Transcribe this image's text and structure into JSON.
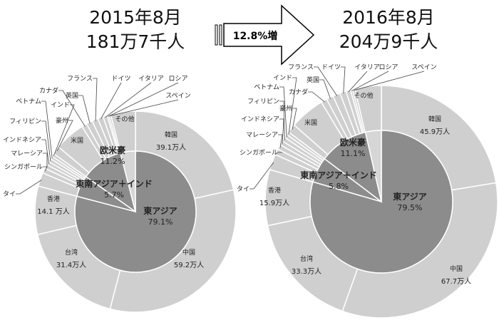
{
  "header": {
    "left_month": "2015年8月",
    "left_total": "181万7千人",
    "right_month": "2016年8月",
    "right_total": "204万9千人",
    "growth": "12.8%増"
  },
  "colors": {
    "outer": "#cfcfcf",
    "inner": "#8c8c8c",
    "inner_other": "#d6d6d6",
    "separator": "#ffffff"
  },
  "chart_data": [
    {
      "type": "pie",
      "title": "2015年8月 181万7千人",
      "unit": "万人",
      "outer": [
        {
          "name": "韓国",
          "value": 39.1,
          "label": "39.1万人"
        },
        {
          "name": "中国",
          "value": 59.2,
          "label": "59.2万人"
        },
        {
          "name": "台湾",
          "value": 31.4,
          "label": "31.4万人"
        },
        {
          "name": "香港",
          "value": 14.1,
          "label": "14.1 万人"
        },
        {
          "name": "タイ",
          "value": 4.0
        },
        {
          "name": "シンガポール",
          "value": 1.5
        },
        {
          "name": "マレーシア",
          "value": 1.2
        },
        {
          "name": "インドネシア",
          "value": 1.0
        },
        {
          "name": "フィリピン",
          "value": 1.0
        },
        {
          "name": "ベトナム",
          "value": 0.8
        },
        {
          "name": "インド",
          "value": 0.9
        },
        {
          "name": "豪州",
          "value": 2.4
        },
        {
          "name": "米国",
          "value": 9.0
        },
        {
          "name": "カナダ",
          "value": 1.5
        },
        {
          "name": "英国",
          "value": 1.8
        },
        {
          "name": "フランス",
          "value": 1.8
        },
        {
          "name": "ドイツ",
          "value": 1.6
        },
        {
          "name": "イタリア",
          "value": 1.2
        },
        {
          "name": "ロシア",
          "value": 0.5
        },
        {
          "name": "スペイン",
          "value": 0.6
        },
        {
          "name": "その他",
          "value": 7.2
        }
      ],
      "inner": [
        {
          "name": "東アジア",
          "pct": "79.1%",
          "value": 79.1
        },
        {
          "name": "東南アジア＋インド",
          "pct": "5.7%",
          "value": 5.7
        },
        {
          "name": "欧米豪",
          "pct": "11.2%",
          "value": 11.2
        },
        {
          "name": "その他",
          "pct": "",
          "value": 4.0
        }
      ]
    },
    {
      "type": "pie",
      "title": "2016年8月 204万9千人",
      "unit": "万人",
      "outer": [
        {
          "name": "韓国",
          "value": 45.9,
          "label": "45.9万人"
        },
        {
          "name": "中国",
          "value": 67.7,
          "label": "67.7万人"
        },
        {
          "name": "台湾",
          "value": 33.3,
          "label": "33.3万人"
        },
        {
          "name": "香港",
          "value": 15.9,
          "label": "15.9万人"
        },
        {
          "name": "タイ",
          "value": 4.5
        },
        {
          "name": "シンガポール",
          "value": 1.7
        },
        {
          "name": "マレーシア",
          "value": 1.4
        },
        {
          "name": "インドネシア",
          "value": 1.2
        },
        {
          "name": "フィリピン",
          "value": 1.2
        },
        {
          "name": "ベトナム",
          "value": 1.0
        },
        {
          "name": "インド",
          "value": 0.9
        },
        {
          "name": "豪州",
          "value": 2.5
        },
        {
          "name": "米国",
          "value": 10.0
        },
        {
          "name": "カナダ",
          "value": 1.7
        },
        {
          "name": "英国",
          "value": 2.0
        },
        {
          "name": "フランス",
          "value": 2.1
        },
        {
          "name": "ドイツ",
          "value": 1.8
        },
        {
          "name": "イタリア",
          "value": 1.3
        },
        {
          "name": "ロシア",
          "value": 0.6
        },
        {
          "name": "スペイン",
          "value": 0.7
        },
        {
          "name": "その他",
          "value": 7.5
        }
      ],
      "inner": [
        {
          "name": "東アジア",
          "pct": "79.5%",
          "value": 79.5
        },
        {
          "name": "東南アジア＋インド",
          "pct": "5.8%",
          "value": 5.8
        },
        {
          "name": "欧米豪",
          "pct": "11.1%",
          "value": 11.1
        },
        {
          "name": "その他",
          "pct": "",
          "value": 3.6
        }
      ]
    }
  ]
}
